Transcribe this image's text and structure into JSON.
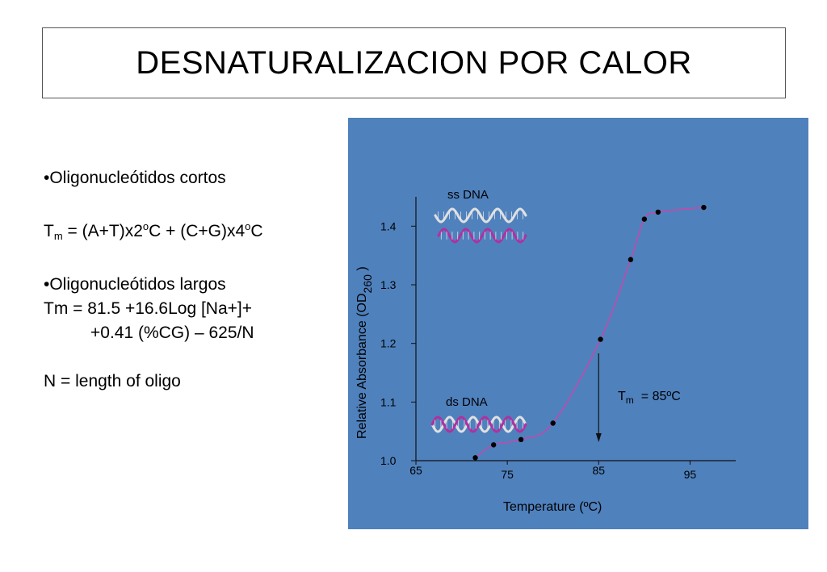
{
  "title": "DESNATURALIZACION POR CALOR",
  "notes": {
    "bullet1": "•Oligonucleótidos cortos",
    "formula1": {
      "t": "T",
      "m": "m",
      "p1": " = (A+T)x2",
      "o1": "o",
      "p2": "C + (C+G)x4",
      "o2": "o",
      "p3": "C"
    },
    "bullet2": "•Oligonucleótidos largos",
    "formula2_line1": "Tm = 81.5 +16.6Log [Na+]+",
    "formula2_line2": "+0.41 (%CG) – 625/N",
    "definition": "N = length of oligo"
  },
  "chart_data": {
    "type": "scatter",
    "x": [
      71.5,
      73.5,
      76.5,
      80,
      85.2,
      88.5,
      90,
      91.5,
      96.5
    ],
    "y": [
      1.005,
      1.027,
      1.036,
      1.064,
      1.207,
      1.343,
      1.412,
      1.424,
      1.432
    ],
    "fit_line": true,
    "xlabel": "Temperature (ºC)",
    "ylabel_main": "Relative Absorbance (OD",
    "ylabel_sub": "260",
    "ylabel_close": " )",
    "xlim": [
      65,
      100
    ],
    "ylim": [
      1.0,
      1.45
    ],
    "x_ticks": [
      "65",
      "75",
      "85",
      "95"
    ],
    "y_ticks": [
      "1.0",
      "1.1",
      "1.2",
      "1.3",
      "1.4"
    ],
    "annotations": {
      "ss": "ss DNA",
      "ds": "ds DNA",
      "tm_main": "T",
      "tm_sub": "m",
      "tm_value": "= 85ºC",
      "tm_x": 85
    },
    "colors": {
      "background": "#4f81bd",
      "curve": "#cc44aa",
      "points": "#000000",
      "helix_strand_a": "#e0e0e0",
      "helix_strand_b": "#b030a0"
    }
  }
}
